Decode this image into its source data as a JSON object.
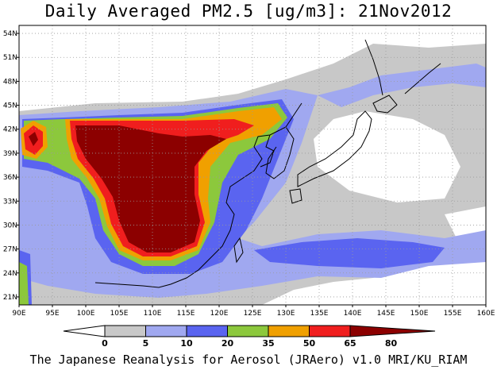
{
  "title": "Daily Averaged PM2.5 [ug/m3]: 21Nov2012",
  "credit": "The Japanese Reanalysis for Aerosol (JRAero) v1.0 MRI/KU_RIAM",
  "map": {
    "lon_range": [
      90,
      160
    ],
    "lat_range": [
      20,
      55
    ],
    "lon_ticks": [
      "90E",
      "95E",
      "100E",
      "105E",
      "110E",
      "115E",
      "120E",
      "125E",
      "130E",
      "135E",
      "140E",
      "145E",
      "150E",
      "155E",
      "160E"
    ],
    "lat_ticks": [
      "21N",
      "24N",
      "27N",
      "30N",
      "33N",
      "36N",
      "39N",
      "42N",
      "45N",
      "48N",
      "51N",
      "54N"
    ],
    "lat_values": [
      21,
      24,
      27,
      30,
      33,
      36,
      39,
      42,
      45,
      48,
      51,
      54
    ]
  },
  "colorbar": {
    "levels": [
      "0",
      "5",
      "10",
      "20",
      "35",
      "50",
      "65",
      "80"
    ],
    "colors": [
      "#ffffff",
      "#c8c8c8",
      "#a0a8f0",
      "#5a64f0",
      "#8cc83c",
      "#f0a000",
      "#f01e1e",
      "#8c0000"
    ]
  }
}
